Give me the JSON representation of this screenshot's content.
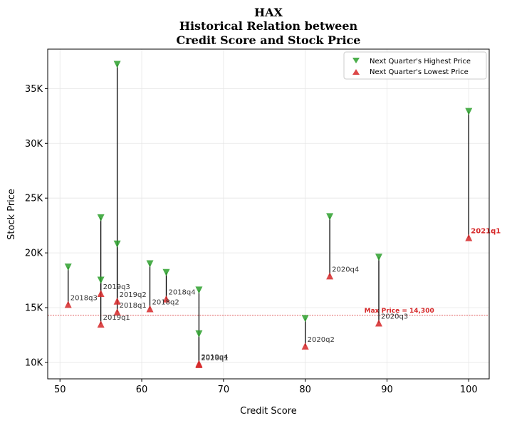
{
  "chart_data": {
    "type": "scatter",
    "title_lines": [
      "HAX",
      "Historical Relation between",
      "Credit Score and Stock Price"
    ],
    "xlabel": "Credit Score",
    "ylabel": "Stock Price",
    "xlim": [
      48.5,
      102.5
    ],
    "ylim": [
      8500,
      38600
    ],
    "xticks": [
      50,
      60,
      70,
      80,
      90,
      100
    ],
    "yticks": [
      10000,
      15000,
      20000,
      25000,
      30000,
      35000
    ],
    "ytick_labels": [
      "10K",
      "15K",
      "20K",
      "25K",
      "30K",
      "35K"
    ],
    "grid": true,
    "legend_position": "top-right",
    "series": [
      {
        "name": "Next Quarter's Highest Price",
        "color": "#2ca02c",
        "marker": "triangle-down"
      },
      {
        "name": "Next Quarter's Lowest Price",
        "color": "#d62728",
        "marker": "triangle-up"
      }
    ],
    "points": [
      {
        "label": "2018q3",
        "x": 51,
        "high": 18700,
        "low": 15300
      },
      {
        "label": "2019q3",
        "x": 55,
        "high": 17500,
        "low": 16300
      },
      {
        "label": "2019q1",
        "x": 55,
        "high": 23200,
        "low": 13500
      },
      {
        "label": "2019q2",
        "x": 57,
        "high": 37200,
        "low": 15600
      },
      {
        "label": "2018q1",
        "x": 57,
        "high": 20800,
        "low": 14600
      },
      {
        "label": "2018q2",
        "x": 61,
        "high": 19000,
        "low": 14900
      },
      {
        "label": "2018q4",
        "x": 63,
        "high": 18200,
        "low": 15800
      },
      {
        "label": "2019q4",
        "x": 67,
        "high": 16600,
        "low": 9900
      },
      {
        "label": "2020q1",
        "x": 67,
        "high": 12600,
        "low": 9800
      },
      {
        "label": "2020q2",
        "x": 80,
        "high": 14000,
        "low": 11500
      },
      {
        "label": "2020q4",
        "x": 83,
        "high": 23300,
        "low": 17900
      },
      {
        "label": "2020q3",
        "x": 89,
        "high": 19600,
        "low": 13600
      },
      {
        "label": "2021q1",
        "x": 100,
        "high": 32900,
        "low": 21400,
        "highlight": true
      }
    ],
    "reference_line": {
      "y": 14300,
      "label": "Max Price = 14,300",
      "color": "#d62728"
    }
  }
}
